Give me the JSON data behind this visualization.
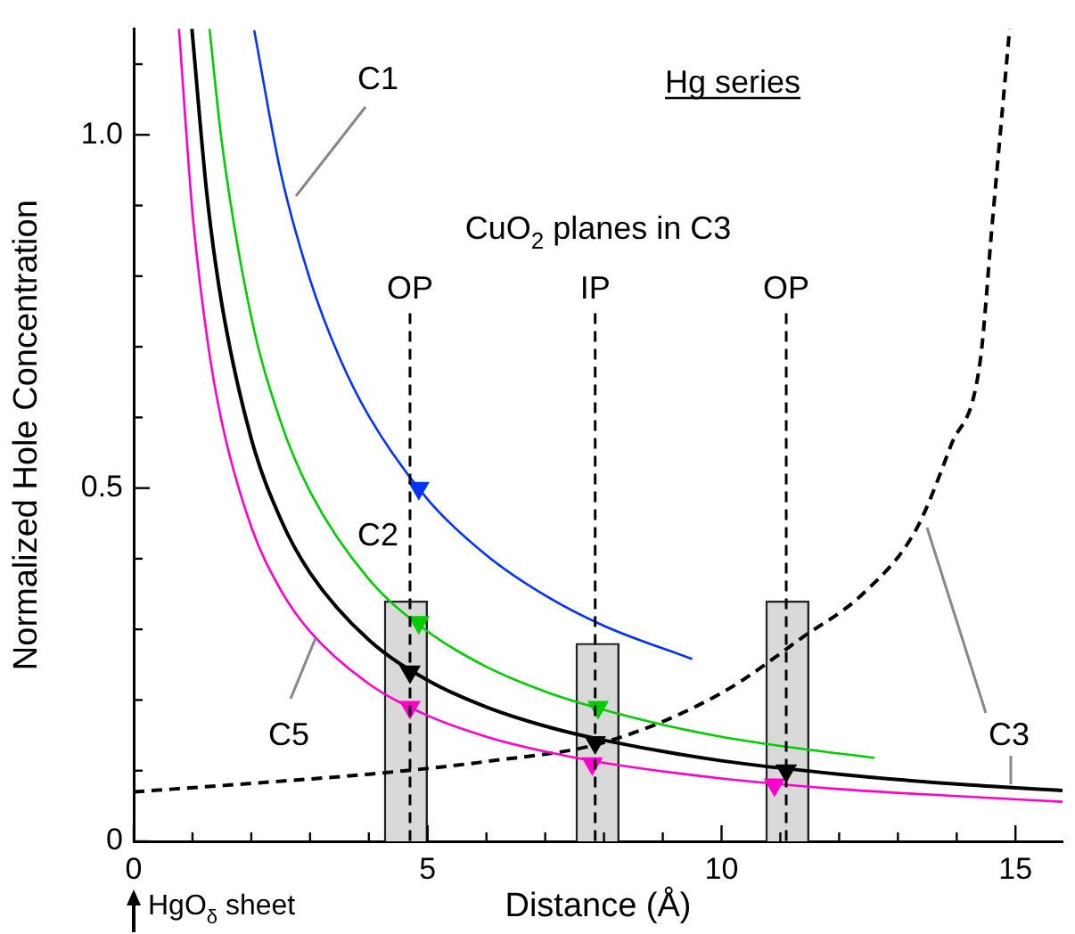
{
  "chart_data": {
    "type": "line",
    "title": "Hg series",
    "xlabel": "Distance (Å)",
    "ylabel": "Normalized Hole Concentration",
    "xlim": [
      0,
      15.8
    ],
    "ylim": [
      0,
      1.15
    ],
    "xticks": [
      0,
      {
        "value": 1,
        "label": null
      },
      {
        "value": 2,
        "label": null
      },
      {
        "value": 3,
        "label": null
      },
      {
        "value": 4,
        "label": null
      },
      5,
      {
        "value": 6,
        "label": null
      },
      {
        "value": 7,
        "label": null
      },
      {
        "value": 8,
        "label": null
      },
      {
        "value": 9,
        "label": null
      },
      10,
      {
        "value": 11,
        "label": null
      },
      {
        "value": 12,
        "label": null
      },
      {
        "value": 13,
        "label": null
      },
      {
        "value": 14,
        "label": null
      },
      15
    ],
    "yticks": [
      0,
      {
        "value": 0.1,
        "label": null
      },
      {
        "value": 0.2,
        "label": null
      },
      {
        "value": 0.3,
        "label": null
      },
      {
        "value": 0.4,
        "label": null
      },
      0.5,
      {
        "value": 0.6,
        "label": null
      },
      {
        "value": 0.7,
        "label": null
      },
      {
        "value": 0.8,
        "label": null
      },
      {
        "value": 0.9,
        "label": null
      },
      {
        "value": 1,
        "label": "1.0"
      },
      {
        "value": 1.1,
        "label": null
      }
    ],
    "grid": false,
    "legend": false,
    "series": [
      {
        "type": "bar",
        "color": "#d9d9d9",
        "x": [
          4.63,
          7.89,
          11.12
        ],
        "values": [
          0.34,
          0.28,
          0.34
        ]
      },
      {
        "name": "C1",
        "color": "#0033ff",
        "x": [
          2.05,
          2.5,
          3,
          3.5,
          4,
          5,
          6,
          7,
          8,
          9.5
        ],
        "values": [
          1.148,
          0.947,
          0.795,
          0.685,
          0.602,
          0.484,
          0.405,
          0.348,
          0.305,
          0.258
        ]
      },
      {
        "name": "C2",
        "color": "#00cc00",
        "x": [
          1.29,
          1.5,
          2,
          2.5,
          3,
          4,
          5,
          6,
          7,
          8,
          9,
          10,
          11,
          12.6
        ],
        "values": [
          1.15,
          0.989,
          0.742,
          0.594,
          0.495,
          0.371,
          0.297,
          0.247,
          0.212,
          0.186,
          0.165,
          0.148,
          0.135,
          0.118
        ]
      },
      {
        "name": "C3",
        "color": "#000000",
        "x": [
          0.99,
          1.25,
          1.5,
          2,
          2.5,
          3,
          4,
          5,
          6,
          7,
          8,
          10,
          12,
          14,
          15.8
        ],
        "values": [
          1.15,
          0.912,
          0.76,
          0.57,
          0.456,
          0.38,
          0.285,
          0.228,
          0.19,
          0.163,
          0.143,
          0.114,
          0.095,
          0.081,
          0.072
        ]
      },
      {
        "name": "C5",
        "color": "#ff00cc",
        "x": [
          0.77,
          1,
          1.25,
          1.5,
          2,
          2.5,
          3,
          4,
          5,
          6,
          7,
          8,
          10,
          12,
          14,
          15.8
        ],
        "values": [
          1.15,
          0.89,
          0.712,
          0.593,
          0.445,
          0.356,
          0.297,
          0.223,
          0.178,
          0.148,
          0.127,
          0.111,
          0.089,
          0.074,
          0.064,
          0.056
        ]
      },
      {
        "color": "#000000",
        "line_style": "dashed",
        "x": [
          0,
          2,
          4,
          6,
          8,
          10,
          11.4,
          12.4,
          13.3,
          13.9,
          14.4,
          14.6,
          14.9
        ],
        "values": [
          0.07,
          0.082,
          0.095,
          0.113,
          0.14,
          0.21,
          0.29,
          0.35,
          0.44,
          0.56,
          0.68,
          0.87,
          1.15
        ]
      },
      {
        "type": "scatter",
        "marker": "triangle",
        "color": "#0033ff",
        "x": [
          4.85
        ],
        "values": [
          0.5
        ]
      },
      {
        "type": "scatter",
        "marker": "triangle",
        "color": "#00cc00",
        "x": [
          4.85,
          7.9
        ],
        "values": [
          0.31,
          0.19
        ]
      },
      {
        "type": "scatter",
        "marker": "triangle",
        "color": "#000000",
        "x": [
          4.7,
          7.85,
          11.1
        ],
        "values": [
          0.24,
          0.14,
          0.1
        ]
      },
      {
        "type": "scatter",
        "marker": "triangle",
        "color": "#ff00cc",
        "x": [
          4.7,
          7.8,
          10.9
        ],
        "values": [
          0.19,
          0.11,
          0.08
        ]
      }
    ],
    "ref_lines": [
      {
        "axis": "x",
        "value": 4.7,
        "label": "OP",
        "color": "#000000",
        "line_style": "dashed"
      },
      {
        "axis": "x",
        "value": 7.85,
        "label": "IP",
        "color": "#000000",
        "line_style": "dashed"
      },
      {
        "axis": "x",
        "value": 11.1,
        "label": "OP",
        "color": "#000000",
        "line_style": "dashed"
      }
    ],
    "annotations": [
      "CuO$_{2}$ planes in C3",
      "HgO$_{δ}$ sheet"
    ]
  }
}
